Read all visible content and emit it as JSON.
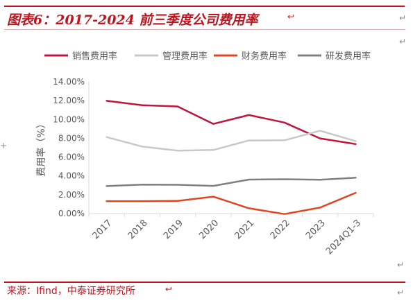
{
  "header": {
    "title": "图表6：2017-2024 前三季度公司费用率"
  },
  "footer": {
    "source": "来源：Ifind，中泰证券研究所"
  },
  "marks": {
    "return_mark": "↵",
    "small_mark": "↩",
    "cross_mark": "+"
  },
  "colors": {
    "accent": "#c0141e",
    "axis": "#d9d9d9",
    "text": "#595959"
  },
  "chart_data": {
    "type": "line",
    "categories": [
      "2017",
      "2018",
      "2019",
      "2020",
      "2021",
      "2022",
      "2023",
      "2024Q1-3"
    ],
    "series": [
      {
        "name": "销售费用率",
        "color": "#c0143c",
        "values": [
          11.98,
          11.52,
          11.38,
          9.53,
          10.47,
          9.67,
          7.99,
          7.38
        ]
      },
      {
        "name": "管理费用率",
        "color": "#c8c8c8",
        "values": [
          8.13,
          7.12,
          6.69,
          6.76,
          7.77,
          7.79,
          8.8,
          7.69
        ]
      },
      {
        "name": "财务费用率",
        "color": "#e0461e",
        "values": [
          1.32,
          1.32,
          1.34,
          1.8,
          0.56,
          -0.05,
          0.63,
          2.2
        ]
      },
      {
        "name": "研发费用率",
        "color": "#7f7f7f",
        "values": [
          2.92,
          3.07,
          3.06,
          2.94,
          3.61,
          3.65,
          3.59,
          3.81
        ]
      }
    ],
    "ylabel": "费用率（%）",
    "ylim": [
      0,
      14
    ],
    "yticks": [
      "0.00%",
      "2.00%",
      "4.00%",
      "6.00%",
      "8.00%",
      "10.00%",
      "12.00%",
      "14.00%"
    ],
    "grid": false,
    "legend": "top"
  }
}
